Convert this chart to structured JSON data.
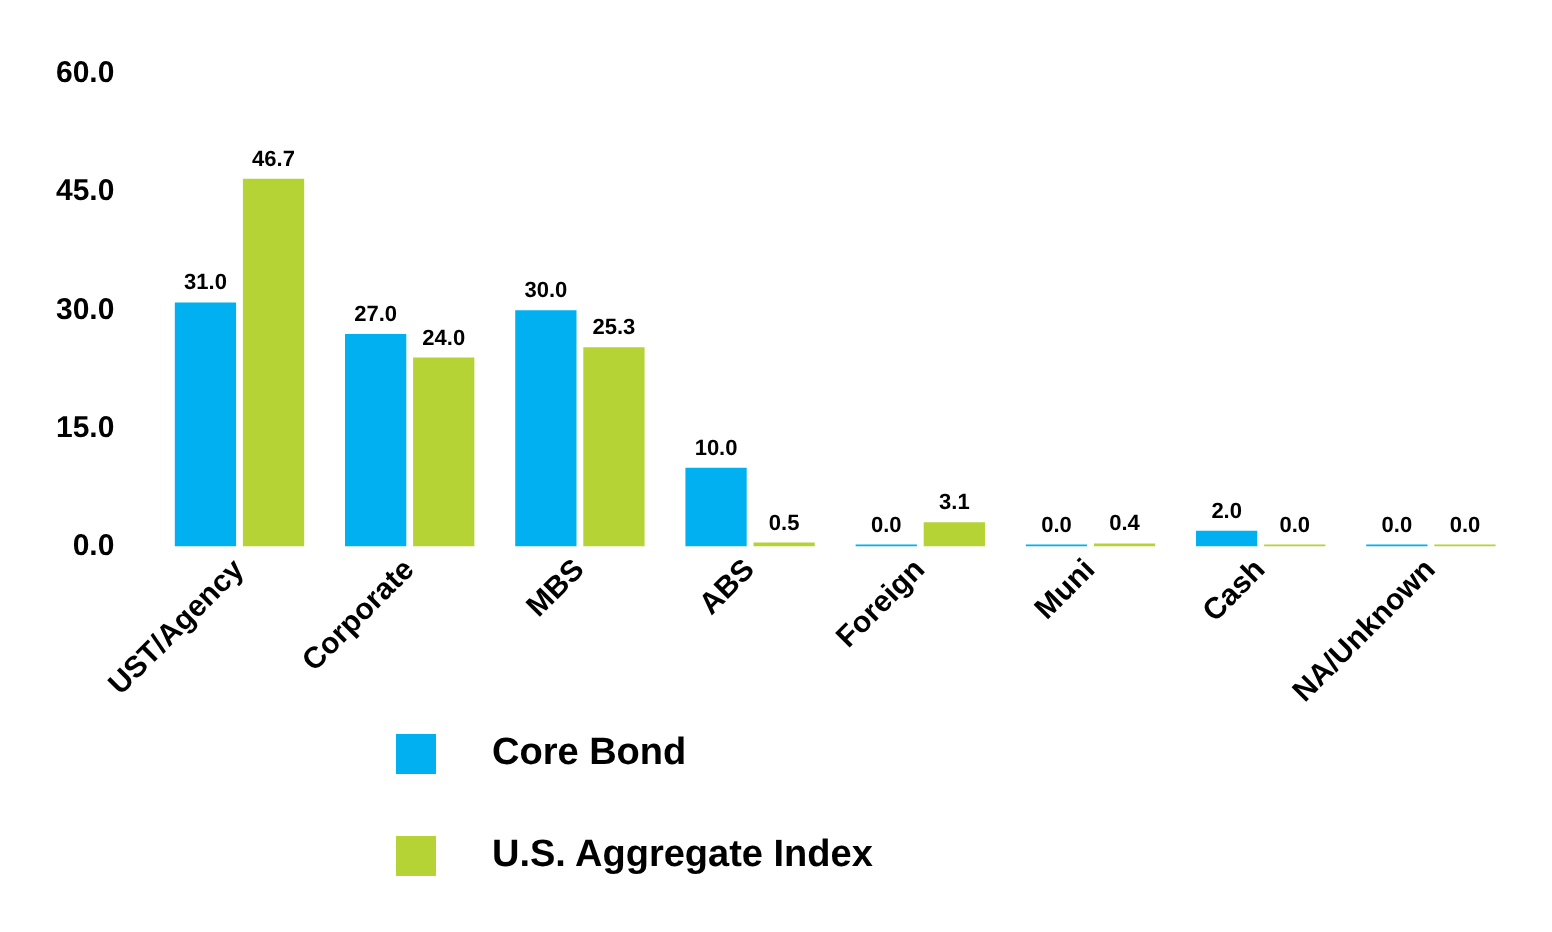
{
  "chart_data": {
    "type": "bar",
    "categories": [
      "UST/Agency",
      "Corporate",
      "MBS",
      "ABS",
      "Foreign",
      "Muni",
      "Cash",
      "NA/Unknown"
    ],
    "series": [
      {
        "name": "Core Bond",
        "color": "#00b0f0",
        "values": [
          31.0,
          27.0,
          30.0,
          10.0,
          0.0,
          0.0,
          2.0,
          0.0
        ],
        "value_labels": [
          "31.0",
          "27.0",
          "30.0",
          "10.0",
          "0.0",
          "0.0",
          "2.0",
          "0.0"
        ]
      },
      {
        "name": "U.S. Aggregate Index",
        "color": "#b5d334",
        "values": [
          46.7,
          24.0,
          25.3,
          0.5,
          3.1,
          0.4,
          0.0,
          0.0
        ],
        "value_labels": [
          "46.7",
          "24.0",
          "25.3",
          "0.5",
          "3.1",
          "0.4",
          "0.0",
          "0.0"
        ]
      }
    ],
    "ylim": [
      0,
      60
    ],
    "yticks": [
      {
        "value": 0,
        "label": "0.0"
      },
      {
        "value": 15,
        "label": "15.0"
      },
      {
        "value": 30,
        "label": "30.0"
      },
      {
        "value": 45,
        "label": "45.0"
      },
      {
        "value": 60,
        "label": "60.0"
      }
    ],
    "grid": false,
    "legend": "bottom"
  }
}
